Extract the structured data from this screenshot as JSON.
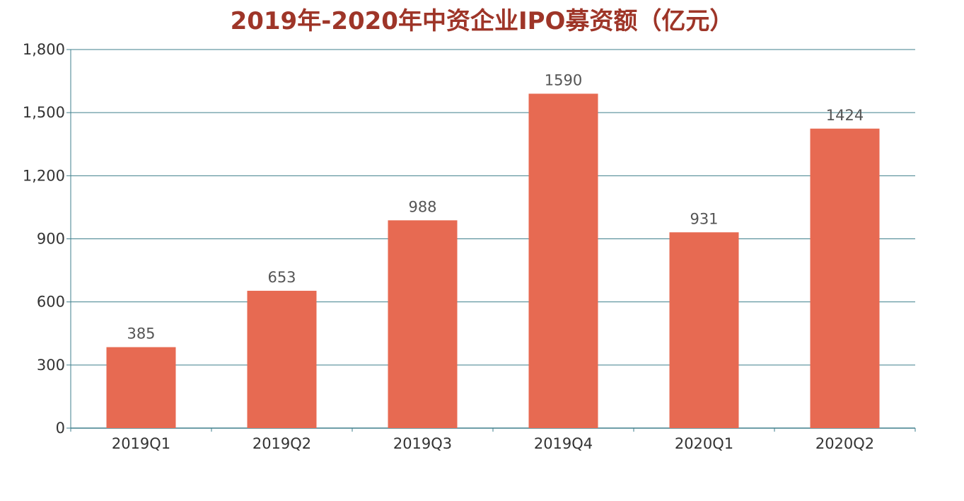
{
  "chart_data": {
    "type": "bar",
    "title": "2019年-2020年中资企业IPO募资额（亿元）",
    "categories": [
      "2019Q1",
      "2019Q2",
      "2019Q3",
      "2019Q4",
      "2020Q1",
      "2020Q2"
    ],
    "series": [
      {
        "values": [
          385,
          653,
          988,
          1590,
          931,
          1424
        ]
      }
    ],
    "ylim": [
      0,
      1800
    ],
    "yticks": [
      0,
      300,
      600,
      900,
      1200,
      1500,
      1800
    ],
    "ytick_labels": [
      "0",
      "300",
      "600",
      "900",
      "1,200",
      "1,500",
      "1,800"
    ],
    "data_labels": [
      "385",
      "653",
      "988",
      "1590",
      "931",
      "1424"
    ],
    "grid": true,
    "legend": "none",
    "colors": {
      "bar": "#e76a52",
      "title": "#9e3528",
      "grid": "#3f7f8c",
      "axis": "#3f7f8c"
    }
  }
}
